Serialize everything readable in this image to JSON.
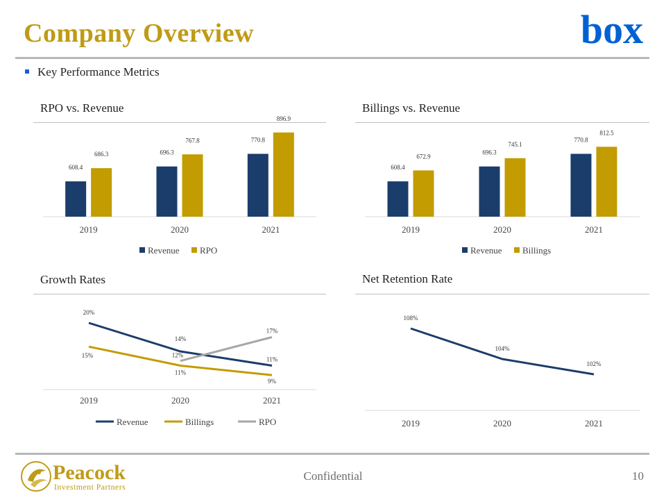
{
  "header": {
    "title": "Company Overview",
    "logo_text": "box",
    "logo_color": "#0061D5"
  },
  "bullet": {
    "text": "Key Performance Metrics",
    "bullet_color": "#1F5BD6"
  },
  "colors": {
    "navy": "#1B3D6B",
    "gold": "#C29C00",
    "gray": "#A6A6A6",
    "accent_title": "#BF9B16"
  },
  "charts": {
    "rpo": {
      "title": "RPO vs. Revenue"
    },
    "billings": {
      "title": "Billings vs. Revenue"
    },
    "growth": {
      "title": "Growth Rates"
    },
    "nrr": {
      "title": "Net Retention Rate"
    }
  },
  "chart_data": [
    {
      "type": "bar",
      "title": "RPO vs. Revenue",
      "categories": [
        "2019",
        "2020",
        "2021"
      ],
      "series": [
        {
          "name": "Revenue",
          "values": [
            608.4,
            696.3,
            770.8
          ],
          "labels": [
            "608.4",
            "696.3",
            "770.8"
          ]
        },
        {
          "name": "RPO",
          "values": [
            686.3,
            767.8,
            896.9
          ],
          "labels": [
            "686.3",
            "767.8",
            "896.9"
          ]
        }
      ],
      "legend": "bottom"
    },
    {
      "type": "bar",
      "title": "Billings vs. Revenue",
      "categories": [
        "2019",
        "2020",
        "2021"
      ],
      "series": [
        {
          "name": "Revenue",
          "values": [
            608.4,
            696.3,
            770.8
          ],
          "labels": [
            "608.4",
            "696.3",
            "770.8"
          ]
        },
        {
          "name": "Billings",
          "values": [
            672.9,
            745.1,
            812.5
          ],
          "labels": [
            "672.9",
            "745.1",
            "812.5"
          ]
        }
      ],
      "legend": "bottom"
    },
    {
      "type": "line",
      "title": "Growth Rates",
      "categories": [
        "2019",
        "2020",
        "2021"
      ],
      "series": [
        {
          "name": "Revenue",
          "values": [
            20,
            14,
            11
          ],
          "labels": [
            "20%",
            "14%",
            "11%"
          ]
        },
        {
          "name": "Billings",
          "values": [
            15,
            11,
            9
          ],
          "labels": [
            "15%",
            "11%",
            "9%"
          ]
        },
        {
          "name": "RPO",
          "values": [
            null,
            12,
            17
          ],
          "labels": [
            "",
            "12%",
            "17%"
          ]
        }
      ],
      "legend": "bottom"
    },
    {
      "type": "line",
      "title": "Net Retention Rate",
      "categories": [
        "2019",
        "2020",
        "2021"
      ],
      "series": [
        {
          "values": [
            108,
            104,
            102
          ],
          "labels": [
            "108%",
            "104%",
            "102%"
          ]
        }
      ]
    }
  ],
  "footer": {
    "company": "Peacock",
    "company_sub": "Investment Partners",
    "confidential": "Confidential",
    "page": "10"
  }
}
